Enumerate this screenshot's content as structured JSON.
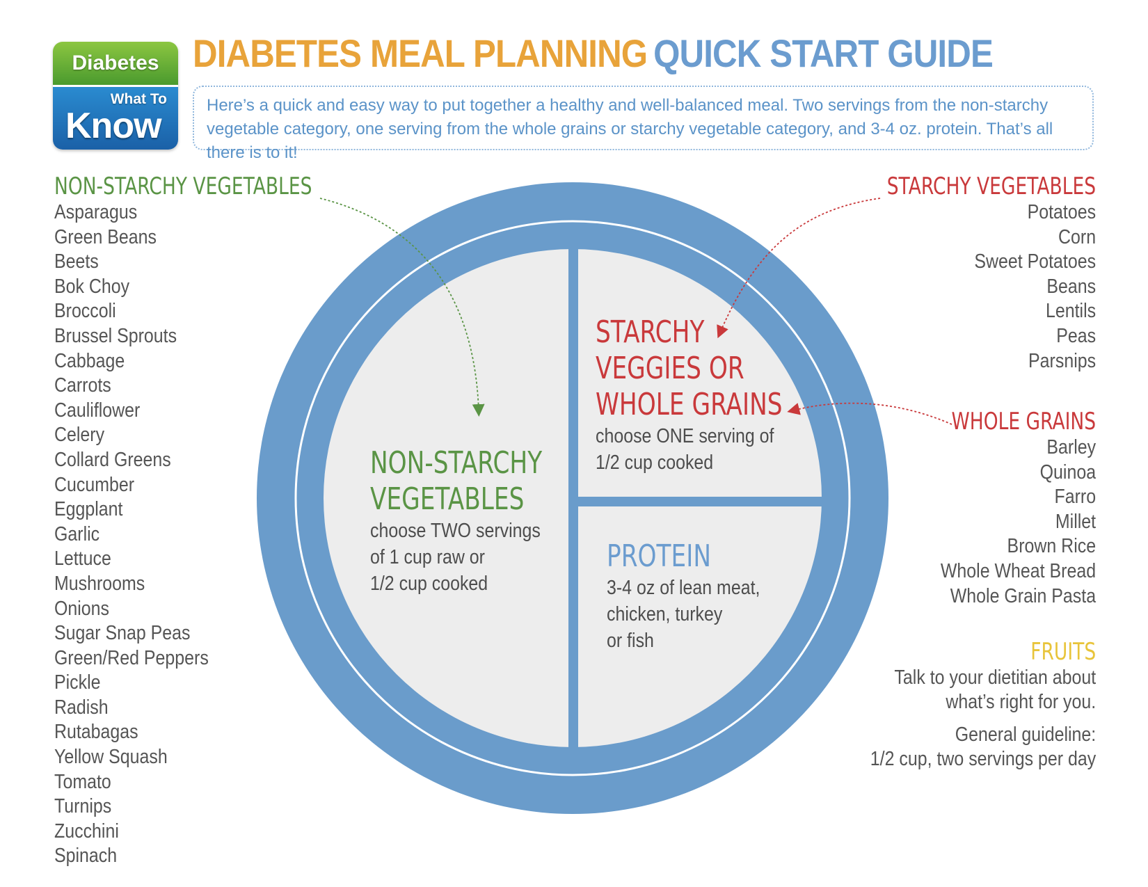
{
  "logo": {
    "top": "Diabetes",
    "sub": "What To",
    "main": "Know"
  },
  "title": {
    "part1": "DIABETES MEAL PLANNING",
    "part2": "QUICK START GUIDE"
  },
  "intro": "Here’s a quick and easy way to put together a healthy and well-balanced meal. Two servings from the non-starchy vegetable category, one serving from the whole grains or starchy vegetable category, and 3-4 oz. protein. That’s all there is to it!",
  "non_starchy": {
    "heading": "NON-STARCHY VEGETABLES",
    "items": [
      "Asparagus",
      "Green Beans",
      "Beets",
      "Bok Choy",
      "Broccoli",
      "Brussel Sprouts",
      "Cabbage",
      "Carrots",
      "Cauliflower",
      "Celery",
      "Collard Greens",
      "Cucumber",
      "Eggplant",
      "Garlic",
      "Lettuce",
      "Mushrooms",
      "Onions",
      "Sugar Snap Peas",
      "Green/Red Peppers",
      "Pickle",
      "Radish",
      "Rutabagas",
      "Yellow Squash",
      "Tomato",
      "Turnips",
      "Zucchini",
      "Spinach"
    ]
  },
  "starchy": {
    "heading": "STARCHY VEGETABLES",
    "items": [
      "Potatoes",
      "Corn",
      "Sweet Potatoes",
      "Beans",
      "Lentils",
      "Peas",
      "Parsnips"
    ]
  },
  "grains": {
    "heading": "WHOLE GRAINS",
    "items": [
      "Barley",
      "Quinoa",
      "Farro",
      "Millet",
      "Brown Rice",
      "Whole Wheat Bread",
      "Whole Grain Pasta"
    ]
  },
  "fruits": {
    "heading": "FRUITS",
    "line1": "Talk to your dietitian about",
    "line2": "what’s right for you.",
    "line3": "General guideline:",
    "line4": "1/2 cup, two servings per day"
  },
  "plate": {
    "veg": {
      "heading1": "NON-STARCHY",
      "heading2": "VEGETABLES",
      "text1": "choose TWO servings",
      "text2": "of 1 cup raw or",
      "text3": "1/2 cup cooked"
    },
    "starch": {
      "heading1": "STARCHY",
      "heading2": "VEGGIES OR",
      "heading3": "WHOLE GRAINS",
      "text1": "choose ONE serving of",
      "text2": "1/2 cup cooked"
    },
    "protein": {
      "heading": "PROTEIN",
      "text1": "3-4 oz of lean meat,",
      "text2": "chicken, turkey",
      "text3": "or fish"
    }
  },
  "colors": {
    "plate_rim": "#6a9ccb",
    "plate_fill": "#ededed",
    "green": "#5a9445",
    "red": "#c9393b",
    "blue": "#6b9ccf",
    "orange": "#e8a33a",
    "yellow": "#e8c43a"
  }
}
